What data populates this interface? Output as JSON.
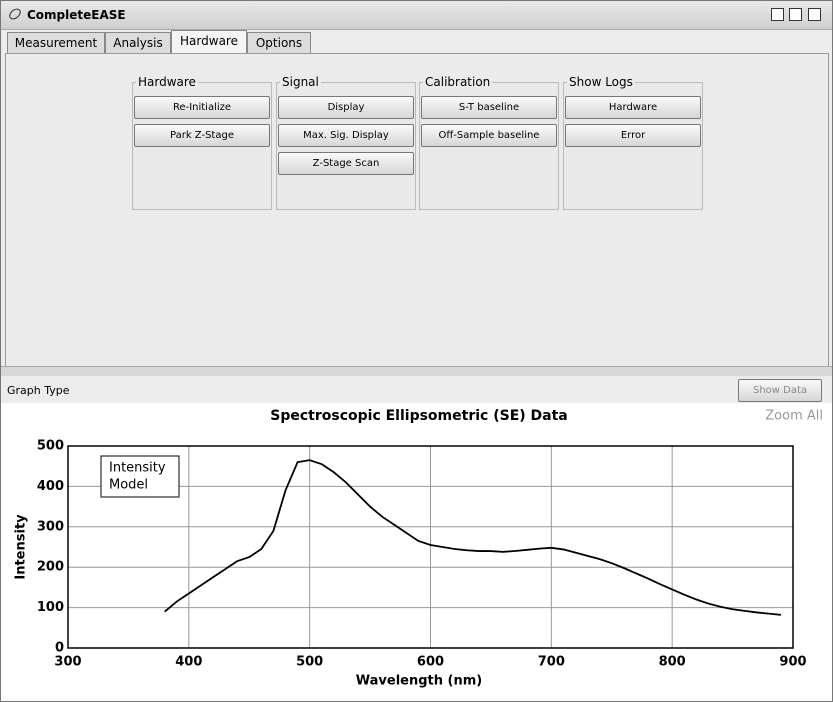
{
  "window": {
    "title": "CompleteEASE"
  },
  "tabs": [
    "Measurement",
    "Analysis",
    "Hardware",
    "Options"
  ],
  "groups": [
    {
      "title": "Hardware",
      "buttons": [
        "Re-Initialize",
        "Park Z-Stage"
      ]
    },
    {
      "title": "Signal",
      "buttons": [
        "Display",
        "Max. Sig. Display",
        "Z-Stage Scan"
      ]
    },
    {
      "title": "Calibration",
      "buttons": [
        "S-T baseline",
        "Off-Sample baseline"
      ]
    },
    {
      "title": "Show Logs",
      "buttons": [
        "Hardware",
        "Error"
      ]
    }
  ],
  "toolbar": {
    "graph_type": "Graph Type",
    "show_data": "Show Data"
  },
  "zoom_all": "Zoom All",
  "chart_data": {
    "type": "line",
    "title": "Spectroscopic Ellipsometric (SE) Data",
    "x_label": "Wavelength (nm)",
    "y_label": "Intensity",
    "legend": [
      "Intensity",
      "Model"
    ],
    "x": [
      380,
      390,
      400,
      410,
      420,
      430,
      440,
      450,
      460,
      470,
      480,
      490,
      500,
      510,
      520,
      530,
      540,
      550,
      560,
      570,
      580,
      590,
      600,
      610,
      620,
      630,
      640,
      650,
      660,
      670,
      680,
      690,
      700,
      710,
      720,
      730,
      740,
      750,
      760,
      770,
      780,
      790,
      800,
      810,
      820,
      830,
      840,
      850,
      860,
      870,
      880,
      890
    ],
    "series": [
      {
        "color": "#000000",
        "values": [
          90,
          115,
          135,
          155,
          175,
          195,
          215,
          225,
          245,
          290,
          390,
          460,
          465,
          455,
          435,
          410,
          380,
          350,
          325,
          305,
          285,
          265,
          255,
          250,
          245,
          242,
          240,
          240,
          238,
          240,
          243,
          246,
          248,
          244,
          236,
          228,
          220,
          210,
          198,
          185,
          172,
          158,
          145,
          132,
          120,
          110,
          102,
          96,
          92,
          88,
          85,
          82
        ]
      }
    ],
    "xlim": [
      300,
      900
    ],
    "xticks": [
      300,
      400,
      500,
      600,
      700,
      800,
      900
    ],
    "ylim": [
      0,
      500
    ],
    "yticks": [
      0,
      100,
      200,
      300,
      400,
      500
    ],
    "grid": true
  }
}
